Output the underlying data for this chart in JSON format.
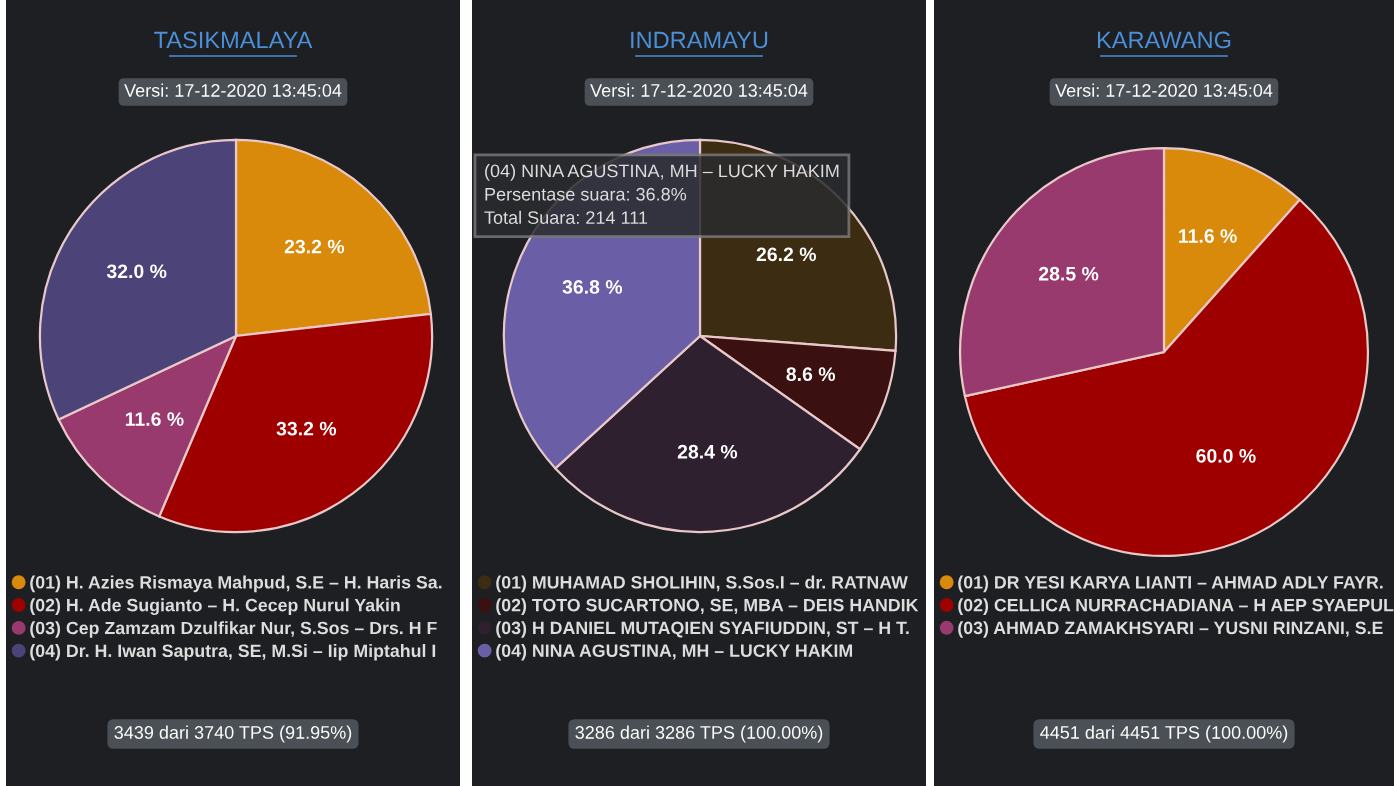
{
  "chart_data": [
    {
      "type": "pie",
      "title": "TASIKMALAYA",
      "subtitle": "Versi: 17-12-2020 13:45:04",
      "categories": [
        "(01) H. Azies Rismaya Mahpud, S.E – H. Haris Sa.",
        "(02) H. Ade Sugianto – H. Cecep Nurul Yakin",
        "(03) Cep Zamzam Dzulfikar Nur, S.Sos – Drs. H F",
        "(04) Dr. H. Iwan Saputra, SE, M.Si – Iip Miptahul I"
      ],
      "values": [
        23.2,
        33.2,
        11.6,
        32.0
      ],
      "value_labels": [
        "23.2 %",
        "33.2 %",
        "11.6 %",
        "32.0 %"
      ],
      "colors": [
        "#d98a0a",
        "#9e0000",
        "#993a6e",
        "#4c4478"
      ],
      "legend": "bottom",
      "annotations": [
        "3439 dari 3740 TPS (91.95%)"
      ]
    },
    {
      "type": "pie",
      "title": "INDRAMAYU",
      "subtitle": "Versi: 17-12-2020 13:45:04",
      "categories": [
        "(01) MUHAMAD SHOLIHIN, S.Sos.I – dr. RATNAW",
        "(02) TOTO SUCARTONO, SE, MBA – DEIS HANDIK",
        "(03) H DANIEL MUTAQIEN SYAFIUDDIN, ST – H T.",
        "(04) NINA AGUSTINA, MH – LUCKY HAKIM"
      ],
      "values": [
        26.2,
        8.6,
        28.4,
        36.8
      ],
      "value_labels": [
        "26.2 %",
        "8.6 %",
        "28.4 %",
        "36.8 %"
      ],
      "colors": [
        "#3b2c12",
        "#3a1010",
        "#2f2030",
        "#6a5fa6"
      ],
      "legend": "bottom",
      "annotations": [
        "(04) NINA AGUSTINA, MH – LUCKY HAKIM",
        "Persentase suara: 36.8%",
        "Total Suara: 214 111",
        "3286 dari 3286 TPS (100.00%)"
      ]
    },
    {
      "type": "pie",
      "title": "KARAWANG",
      "subtitle": "Versi: 17-12-2020 13:45:04",
      "categories": [
        "(01) DR YESI KARYA LIANTI – AHMAD ADLY FAYR.",
        "(02) CELLICA NURRACHADIANA – H AEP SYAEPUL",
        "(03) AHMAD ZAMAKHSYARI – YUSNI RINZANI, S.E"
      ],
      "values": [
        11.6,
        60.0,
        28.5
      ],
      "value_labels": [
        "11.6 %",
        "60.0 %",
        "28.5 %"
      ],
      "colors": [
        "#d98a0a",
        "#9e0000",
        "#993a6e"
      ],
      "legend": "bottom",
      "annotations": [
        "4451 dari 4451 TPS (100.00%)"
      ]
    }
  ]
}
